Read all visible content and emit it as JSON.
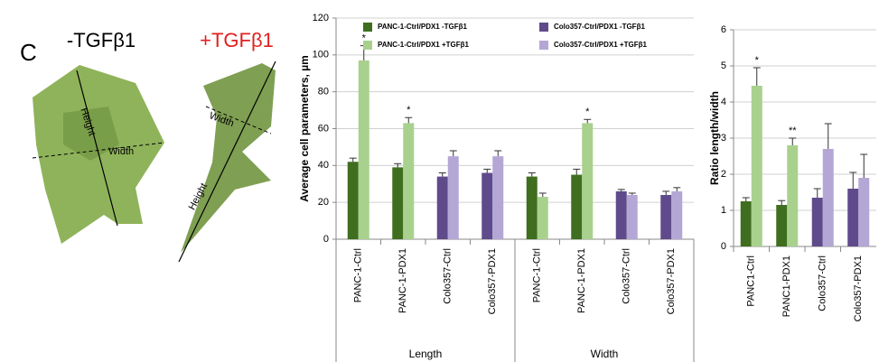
{
  "illustration": {
    "panel": "C",
    "left_label": "-TGFβ1",
    "right_label": "+TGFβ1",
    "left_height": "Height",
    "left_width": "Width",
    "right_width": "Width",
    "right_height": "Height"
  },
  "chart_data": [
    {
      "type": "bar",
      "ylabel": "Average cell parameters, µm",
      "categories": [
        "PANC-1-Ctrl",
        "PANC-1-PDX1",
        "Colo357-Ctrl",
        "Colo357-PDX1",
        "PANC-1-Ctrl",
        "PANC-1-PDX1",
        "Colo357-Ctrl",
        "Colo357-PDX1"
      ],
      "group_labels": [
        "Length",
        "Width"
      ],
      "series": [
        {
          "name": "PANC-1-Ctrl/PDX1 -TGFβ1",
          "color": "#3f6e1f",
          "values": [
            42,
            39,
            null,
            null,
            34,
            35,
            null,
            null
          ],
          "errors": [
            2,
            2,
            null,
            null,
            2,
            3,
            null,
            null
          ],
          "value_annotations": [
            null,
            null,
            null,
            null,
            null,
            null,
            null,
            null
          ]
        },
        {
          "name": "PANC-1-Ctrl/PDX1 +TGFβ1",
          "color": "#a9d18e",
          "values": [
            97,
            63,
            null,
            null,
            23,
            63,
            null,
            null
          ],
          "errors": [
            8,
            3,
            null,
            null,
            2,
            2,
            null,
            null
          ],
          "value_annotations": [
            "*",
            "*",
            null,
            null,
            null,
            "*",
            null,
            null
          ]
        },
        {
          "name": "Colo357-Ctrl/PDX1 -TGFβ1",
          "color": "#5f4b8b",
          "values": [
            null,
            null,
            34,
            36,
            null,
            null,
            26,
            24
          ],
          "errors": [
            null,
            null,
            2,
            2,
            null,
            null,
            1,
            2
          ],
          "value_annotations": [
            null,
            null,
            null,
            null,
            null,
            null,
            null,
            null
          ]
        },
        {
          "name": "Colo357-Ctrl/PDX1 +TGFβ1",
          "color": "#b4a7d6",
          "values": [
            null,
            null,
            45,
            45,
            null,
            null,
            24,
            26
          ],
          "errors": [
            null,
            null,
            3,
            3,
            null,
            null,
            1,
            2
          ],
          "value_annotations": [
            null,
            null,
            null,
            null,
            null,
            null,
            null,
            null
          ]
        }
      ],
      "ylim": [
        0,
        120
      ],
      "yticks": [
        0,
        20,
        40,
        60,
        80,
        100,
        120
      ],
      "grid": true
    },
    {
      "type": "bar",
      "ylabel": "Ratio length/width",
      "categories": [
        "PANC1-Ctrl",
        "PANC1-PDX1",
        "Colo357-Ctrl",
        "Colo357-PDX1"
      ],
      "series": [
        {
          "colors": [
            "#3f6e1f",
            "#3f6e1f",
            "#5f4b8b",
            "#5f4b8b"
          ],
          "values": [
            1.25,
            1.15,
            1.35,
            1.6
          ],
          "errors": [
            0.1,
            0.12,
            0.25,
            0.45
          ],
          "value_annotations": [
            null,
            null,
            null,
            null
          ]
        },
        {
          "colors": [
            "#a9d18e",
            "#a9d18e",
            "#b4a7d6",
            "#b4a7d6"
          ],
          "values": [
            4.45,
            2.8,
            2.7,
            1.9
          ],
          "errors": [
            0.5,
            0.2,
            0.7,
            0.65
          ],
          "value_annotations": [
            "*",
            "**",
            null,
            null
          ]
        }
      ],
      "ylim": [
        0,
        6
      ],
      "yticks": [
        0,
        1,
        2,
        3,
        4,
        5,
        6
      ],
      "grid": true
    }
  ]
}
